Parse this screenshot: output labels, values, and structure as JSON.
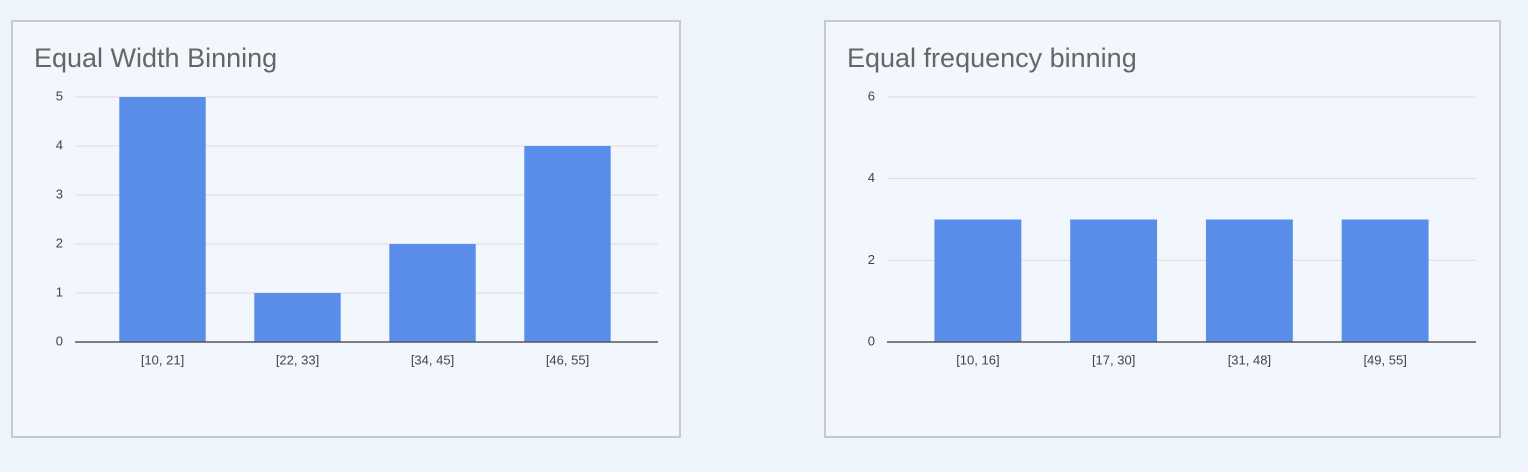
{
  "chart_data": [
    {
      "type": "bar",
      "title": "Equal Width Binning",
      "categories": [
        "[10, 21]",
        "[22, 33]",
        "[34, 45]",
        "[46, 55]"
      ],
      "values": [
        5,
        1,
        2,
        4
      ],
      "color": "#5a8dea",
      "ylim": [
        0,
        5
      ],
      "yticks": [
        0,
        1,
        2,
        3,
        4,
        5
      ],
      "grid": true
    },
    {
      "type": "bar",
      "title": "Equal frequency binning",
      "categories": [
        "[10, 16]",
        "[17, 30]",
        "[31, 48]",
        "[49, 55]"
      ],
      "values": [
        3,
        3,
        3,
        3
      ],
      "color": "#5a8dea",
      "ylim": [
        0,
        6
      ],
      "yticks": [
        0,
        2,
        4,
        6
      ],
      "grid": true
    }
  ]
}
